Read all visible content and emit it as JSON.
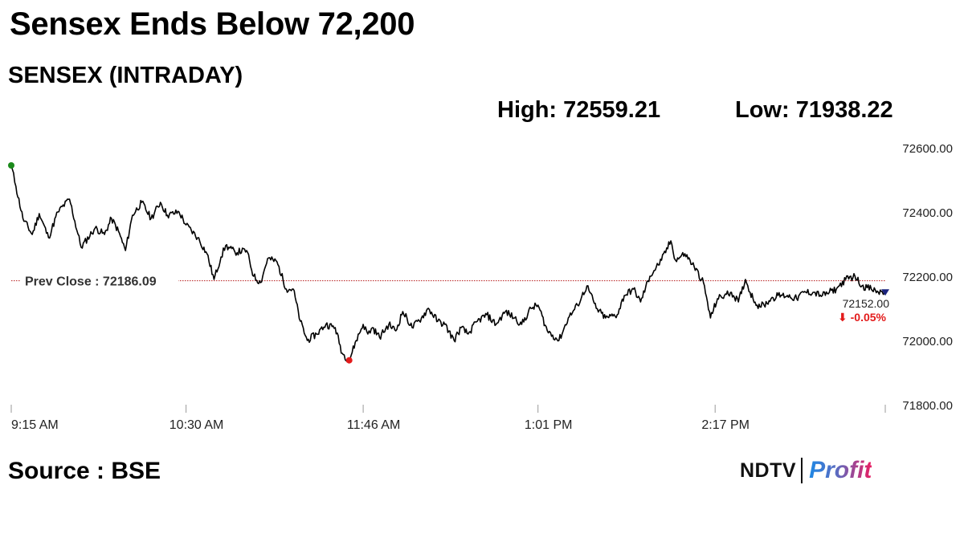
{
  "headline": "Sensex Ends Below 72,200",
  "subtitle": "SENSEX (INTRADAY)",
  "stats": {
    "high": "High: 72559.21",
    "low": "Low: 71938.22"
  },
  "source": "Source : BSE",
  "brand": {
    "left": "NDTV",
    "right": "Profit"
  },
  "colors": {
    "line": "#000000",
    "prev_close": "#b71c1c",
    "open_marker": "#1b8a1b",
    "low_marker": "#e31b1b",
    "close_marker": "#1a237e",
    "change": "#e31b1b"
  },
  "chart_data": {
    "type": "line",
    "title": "SENSEX (INTRADAY)",
    "xlabel": "",
    "ylabel": "",
    "ylim": [
      71800,
      72600
    ],
    "y_ticks": [
      "72600.00",
      "72400.00",
      "72200.00",
      "72000.00",
      "71800.00"
    ],
    "y_tick_values": [
      72600,
      72400,
      72200,
      72000,
      71800
    ],
    "x_tick_labels": [
      "9:15 AM",
      "10:30 AM",
      "11:46 AM",
      "1:01 PM",
      "2:17 PM"
    ],
    "x_tick_minutes": [
      0,
      75,
      151,
      226,
      302
    ],
    "x_range_minutes": [
      0,
      375
    ],
    "grid": false,
    "prev_close": {
      "label": "Prev Close : 72186.09",
      "value": 72186.09
    },
    "high": 72559.21,
    "low": 71938.22,
    "close": {
      "label": "72152.00",
      "value": 72152.0
    },
    "change": {
      "label": "⬇ -0.05%",
      "value": -0.05
    },
    "series": [
      {
        "x": [
          "9:15 AM",
          "9:17 AM",
          "9:20 AM",
          "9:24 AM",
          "9:27 AM",
          "9:31 AM",
          "9:35 AM",
          "9:40 AM",
          "9:45 AM",
          "9:51 AM",
          "9:55 AM",
          "9:58 AM",
          "10:01 AM",
          "10:04 AM",
          "10:07 AM",
          "10:11 AM",
          "10:15 AM",
          "10:19 AM",
          "10:22 AM",
          "10:27 AM",
          "10:30 AM",
          "10:35 AM",
          "10:39 AM",
          "10:42 AM",
          "10:45 AM",
          "10:47 AM",
          "10:51 AM",
          "10:56 AM",
          "10:59 AM",
          "11:02 AM",
          "11:05 AM",
          "11:09 AM",
          "11:13 AM",
          "11:16 AM",
          "11:19 AM",
          "11:22 AM",
          "11:26 AM",
          "11:30 AM",
          "11:34 AM",
          "11:37 AM",
          "11:40 AM",
          "11:43 AM",
          "11:46 AM",
          "11:48 AM",
          "11:50 AM",
          "11:53 AM",
          "11:57 AM",
          "12:00 PM",
          "12:03 PM",
          "12:07 PM",
          "12:11 PM",
          "12:14 PM",
          "12:18 PM",
          "12:21 PM",
          "12:25 PM",
          "12:28 PM",
          "12:31 PM",
          "12:35 PM",
          "12:39 PM",
          "12:43 PM",
          "12:47 PM",
          "12:51 PM",
          "12:54 PM",
          "12:58 PM",
          "1:01 PM",
          "1:05 PM",
          "1:10 PM",
          "1:14 PM",
          "1:18 PM",
          "1:22 PM",
          "1:26 PM",
          "1:30 PM",
          "1:35 PM",
          "1:38 PM",
          "1:42 PM",
          "1:45 PM",
          "1:49 PM",
          "1:54 PM",
          "1:58 PM",
          "2:00 PM",
          "2:04 PM",
          "2:08 PM",
          "2:12 PM",
          "2:15 PM",
          "2:18 PM",
          "2:21 PM",
          "2:24 PM",
          "2:27 PM",
          "2:30 PM",
          "2:32 PM",
          "2:35 PM",
          "2:38 PM",
          "2:41 PM",
          "2:44 PM",
          "2:48 PM",
          "2:52 PM",
          "2:55 PM",
          "2:59 PM",
          "3:03 PM",
          "3:06 PM",
          "3:09 PM",
          "3:13 PM",
          "3:17 PM",
          "3:20 PM",
          "3:24 PM",
          "3:27 PM",
          "3:30 PM"
        ],
        "values": [
          72545,
          72480,
          72380,
          72330,
          72395,
          72320,
          72400,
          72440,
          72290,
          72350,
          72330,
          72380,
          72340,
          72280,
          72390,
          72430,
          72380,
          72430,
          72390,
          72400,
          72360,
          72320,
          72270,
          72190,
          72260,
          72295,
          72275,
          72280,
          72200,
          72180,
          72255,
          72245,
          72160,
          72160,
          72060,
          72000,
          72020,
          72050,
          72040,
          71960,
          71938,
          72000,
          72050,
          72020,
          72040,
          72010,
          72050,
          72030,
          72090,
          72040,
          72070,
          72100,
          72060,
          72050,
          72000,
          72040,
          72020,
          72060,
          72080,
          72050,
          72090,
          72070,
          72050,
          72100,
          72110,
          72030,
          72000,
          72070,
          72110,
          72170,
          72100,
          72070,
          72080,
          72140,
          72160,
          72120,
          72200,
          72250,
          72310,
          72250,
          72270,
          72230,
          72180,
          72070,
          72130,
          72140,
          72150,
          72120,
          72190,
          72150,
          72110,
          72110,
          72130,
          72140,
          72140,
          72130,
          72150,
          72150,
          72140,
          72150,
          72160,
          72190,
          72200,
          72170,
          72160,
          72150,
          72152
        ]
      }
    ]
  }
}
